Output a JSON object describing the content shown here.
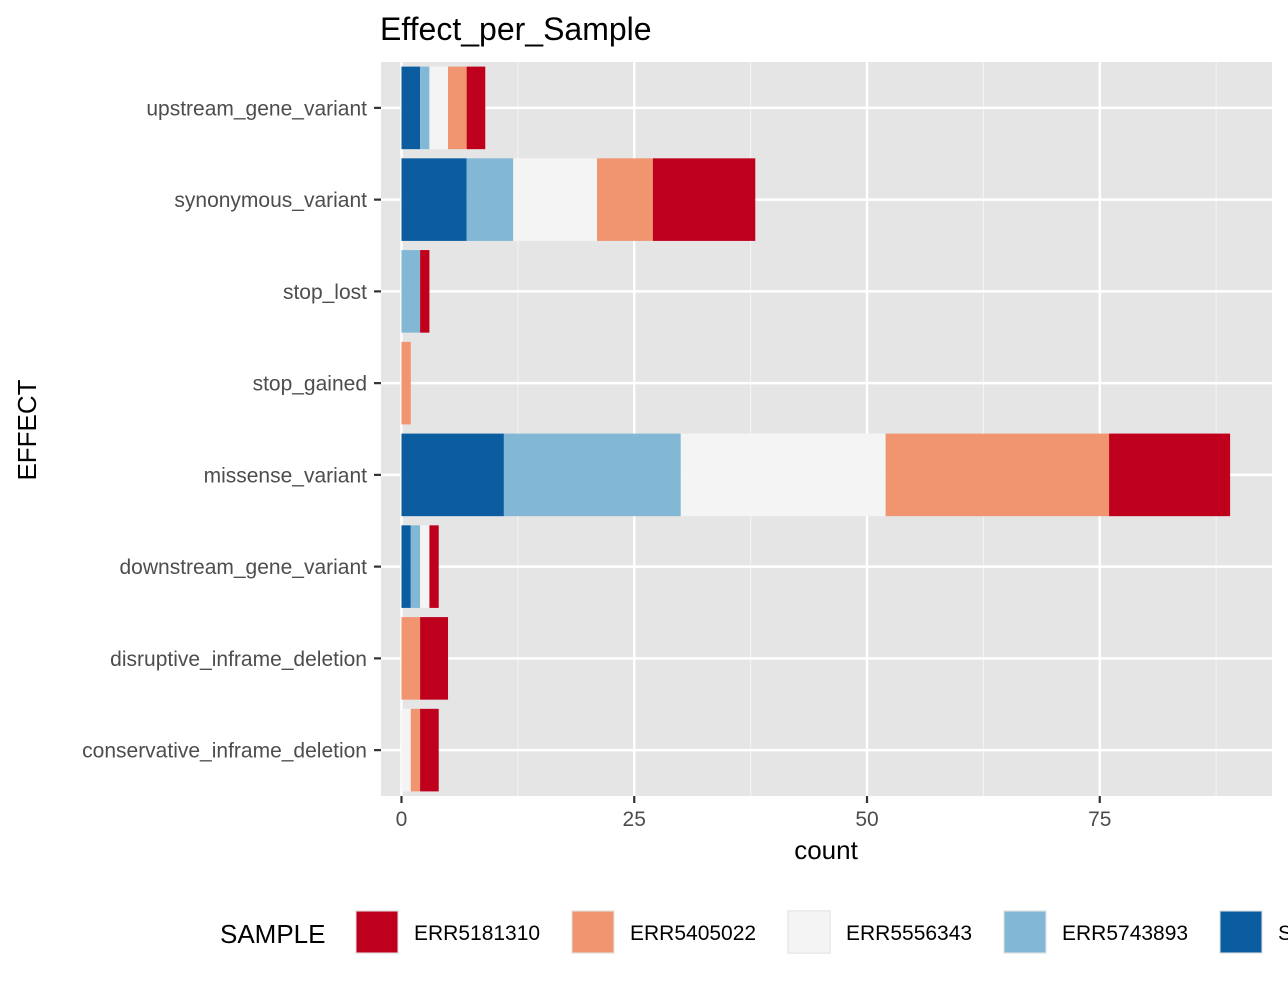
{
  "chart_data": {
    "type": "bar",
    "orientation": "horizontal",
    "stacked": true,
    "title": "Effect_per_Sample",
    "xlabel": "count",
    "ylabel": "EFFECT",
    "xlim": [
      -2.2,
      93.5
    ],
    "x_ticks": [
      0,
      25,
      50,
      75
    ],
    "x_tick_labels": [
      "0",
      "25",
      "50",
      "75"
    ],
    "grid": true,
    "legend_position": "bottom",
    "legend_title": "SAMPLE",
    "categories": [
      "upstream_gene_variant",
      "synonymous_variant",
      "stop_lost",
      "stop_gained",
      "missense_variant",
      "downstream_gene_variant",
      "disruptive_inframe_deletion",
      "conservative_inframe_deletion"
    ],
    "series": [
      {
        "name": "S",
        "color": "#0C5DA0",
        "values": [
          2,
          7,
          0,
          0,
          11,
          1,
          0,
          0
        ]
      },
      {
        "name": "ERR5743893",
        "color": "#82B8D6",
        "values": [
          1,
          5,
          2,
          0,
          19,
          1,
          0,
          0
        ]
      },
      {
        "name": "ERR5556343",
        "color": "#F4F4F4",
        "values": [
          2,
          9,
          0,
          0,
          22,
          1,
          0,
          1
        ]
      },
      {
        "name": "ERR5405022",
        "color": "#F09570",
        "values": [
          2,
          6,
          0,
          1,
          24,
          0,
          2,
          1
        ]
      },
      {
        "name": "ERR5181310",
        "color": "#BF001C",
        "values": [
          2,
          11,
          1,
          0,
          13,
          1,
          3,
          2
        ]
      }
    ],
    "legend_order": [
      "ERR5181310",
      "ERR5405022",
      "ERR5556343",
      "ERR5743893",
      "S"
    ]
  }
}
